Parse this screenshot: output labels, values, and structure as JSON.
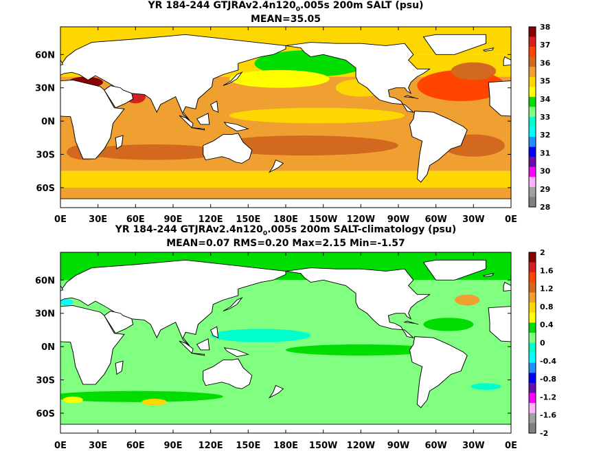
{
  "chart_data": [
    {
      "type": "heatmap",
      "title_prefix": "YR 184-244 GTJRAv2.4n120",
      "title_sub": "0",
      "title_suffix": ".005s 200m SALT (psu)",
      "subtitle": "MEAN=35.05",
      "x_ticks": [
        "0E",
        "30E",
        "60E",
        "90E",
        "120E",
        "150E",
        "180E",
        "150W",
        "120W",
        "90W",
        "60W",
        "30W",
        "0E"
      ],
      "y_ticks": [
        "60N",
        "30N",
        "0N",
        "30S",
        "60S"
      ],
      "y_tick_lat": [
        60,
        30,
        0,
        -30,
        -60
      ],
      "colorbar_levels": [
        "38",
        "37",
        "36",
        "35",
        "34",
        "33",
        "32",
        "31",
        "30",
        "29",
        "28"
      ],
      "colorbar_colors": [
        "#8b0000",
        "#d42020",
        "#ff4500",
        "#d2691e",
        "#f0a030",
        "#ffd700",
        "#ffff00",
        "#00dd00",
        "#80ff80",
        "#00ffcc",
        "#00ffff",
        "#1e90ff",
        "#0000ff",
        "#6a0dad",
        "#ff00ff",
        "#ffb0ff",
        "#a0a0a0",
        "#808080"
      ]
    },
    {
      "type": "heatmap",
      "title_prefix": "YR 184-244 GTJRAv2.4n120",
      "title_sub": "0",
      "title_suffix": ".005s 200m SALT-climatology (psu)",
      "subtitle": "MEAN=0.07   RMS=0.20   Max=2.15   Min=-1.57",
      "x_ticks": [
        "0E",
        "30E",
        "60E",
        "90E",
        "120E",
        "150E",
        "180E",
        "150W",
        "120W",
        "90W",
        "60W",
        "30W",
        "0E"
      ],
      "y_ticks": [
        "60N",
        "30N",
        "0N",
        "30S",
        "60S"
      ],
      "y_tick_lat": [
        60,
        30,
        0,
        -30,
        -60
      ],
      "colorbar_levels": [
        "2",
        "1.6",
        "1.2",
        "0.8",
        "0.4",
        "0",
        "-0.4",
        "-0.8",
        "-1.2",
        "-1.6",
        "-2"
      ],
      "colorbar_colors": [
        "#8b0000",
        "#d42020",
        "#ff4500",
        "#d2691e",
        "#f0a030",
        "#ffd700",
        "#ffff00",
        "#00dd00",
        "#80ff80",
        "#00ffcc",
        "#00ffff",
        "#1e90ff",
        "#0000ff",
        "#6a0dad",
        "#ff00ff",
        "#ffb0ff",
        "#a0a0a0",
        "#808080"
      ]
    }
  ]
}
